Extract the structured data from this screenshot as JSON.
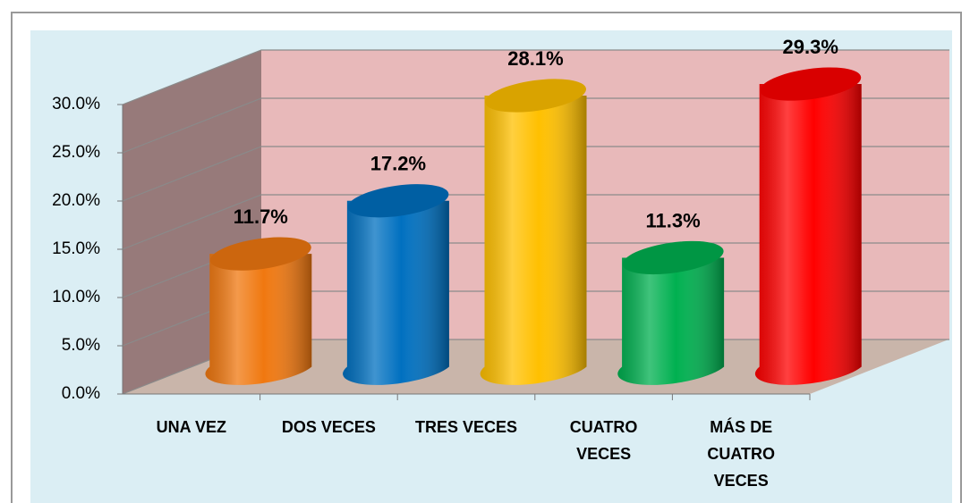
{
  "chart_data": {
    "type": "bar3d",
    "categories": [
      "UNA VEZ",
      "DOS VECES",
      "TRES VECES",
      "CUATRO VECES",
      "MÁS DE CUATRO VECES"
    ],
    "values": [
      11.7,
      17.2,
      28.1,
      11.3,
      29.3
    ],
    "value_labels": [
      "11.7%",
      "17.2%",
      "28.1%",
      "11.3%",
      "29.3%"
    ],
    "colors": [
      "#f07810",
      "#0070c0",
      "#ffc000",
      "#00b050",
      "#ff0000"
    ],
    "ylim": [
      0,
      30
    ],
    "yticks": [
      {
        "value": 0,
        "label": "0.0%"
      },
      {
        "value": 5,
        "label": "5.0%"
      },
      {
        "value": 10,
        "label": "10.0%"
      },
      {
        "value": 15,
        "label": "15.0%"
      },
      {
        "value": 20,
        "label": "20.0%"
      },
      {
        "value": 25,
        "label": "25.0%"
      },
      {
        "value": 30,
        "label": "30.0%"
      }
    ],
    "grid": true
  }
}
